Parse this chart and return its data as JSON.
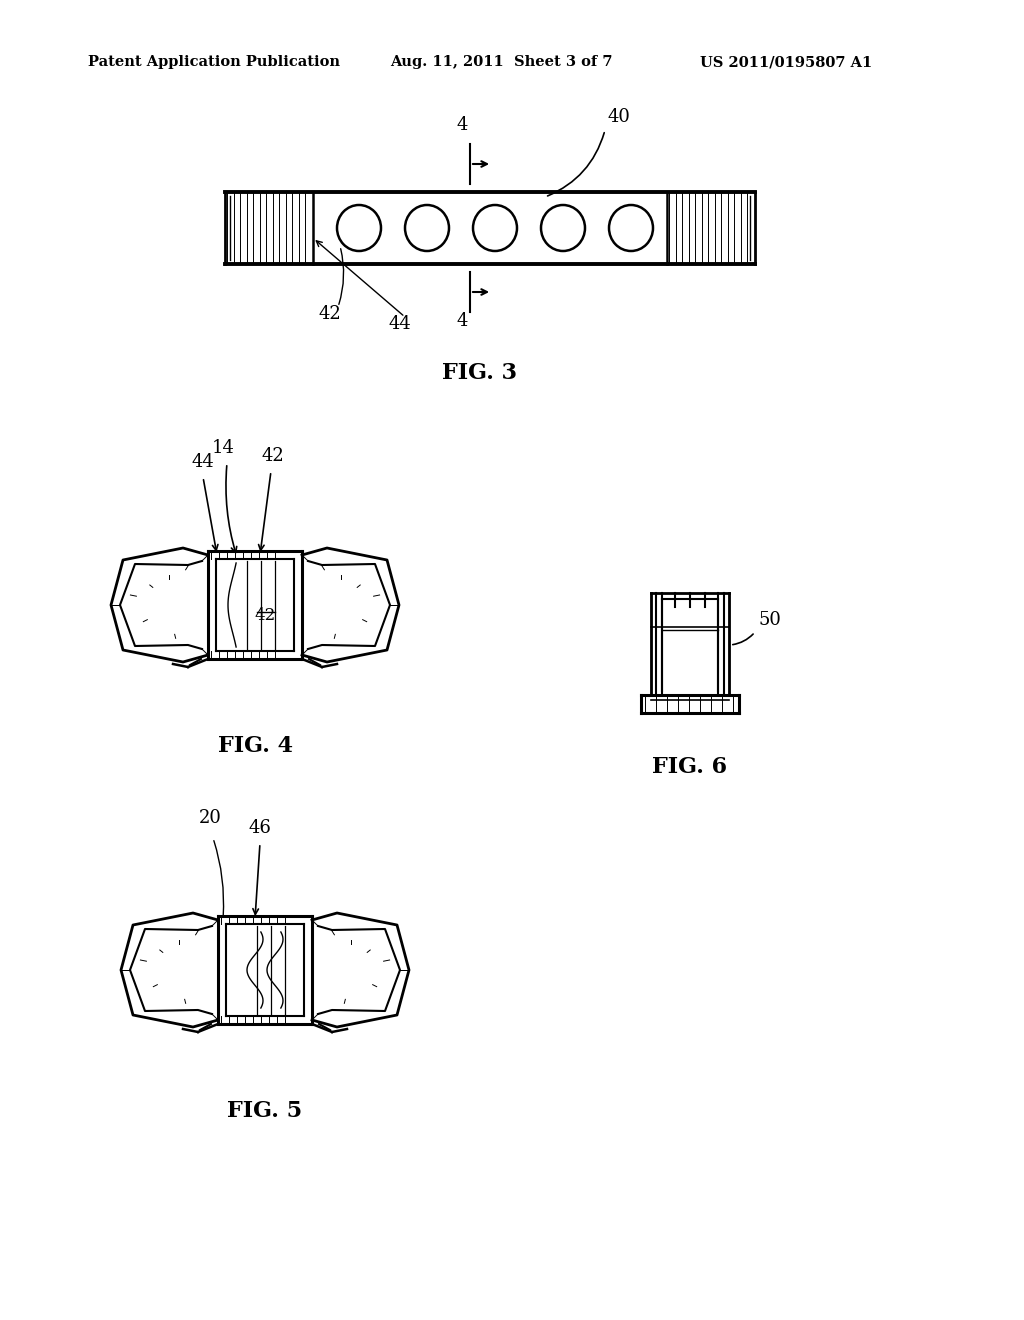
{
  "bg_color": "#ffffff",
  "header_left": "Patent Application Publication",
  "header_mid": "Aug. 11, 2011  Sheet 3 of 7",
  "header_right": "US 2011/0195807 A1",
  "fig3_label": "FIG. 3",
  "fig4_label": "FIG. 4",
  "fig5_label": "FIG. 5",
  "fig6_label": "FIG. 6",
  "text_color": "#000000"
}
